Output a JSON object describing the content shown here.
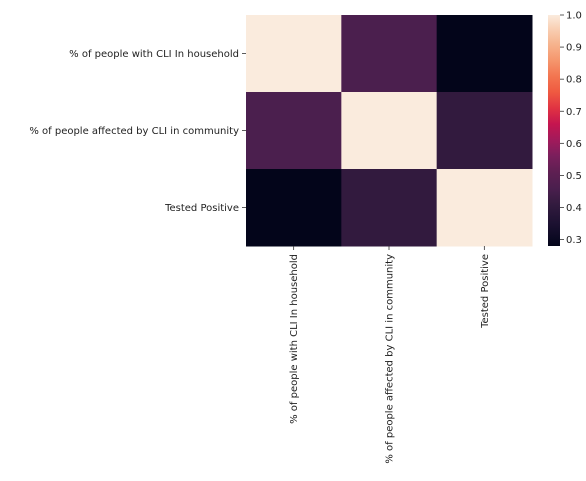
{
  "chart_data": {
    "type": "heatmap",
    "title": "",
    "xlabel": "",
    "ylabel": "",
    "x_categories": [
      "% of people with CLI In household",
      "% of people affected by CLI in community",
      "Tested Positive"
    ],
    "y_categories": [
      "% of people with CLI In household",
      "% of people affected by CLI in community",
      "Tested Positive"
    ],
    "values": [
      [
        1.0,
        0.46,
        0.28
      ],
      [
        0.46,
        1.0,
        0.42
      ],
      [
        0.28,
        0.42,
        1.0
      ]
    ],
    "colorbar": {
      "min": 0.28,
      "max": 1.0,
      "ticks": [
        0.3,
        0.4,
        0.5,
        0.6,
        0.7,
        0.8,
        0.9,
        1.0
      ],
      "tick_labels": [
        "0.3",
        "0.4",
        "0.5",
        "0.6",
        "0.7",
        "0.8",
        "0.9",
        "1.0"
      ],
      "colormap": "rocket"
    }
  }
}
